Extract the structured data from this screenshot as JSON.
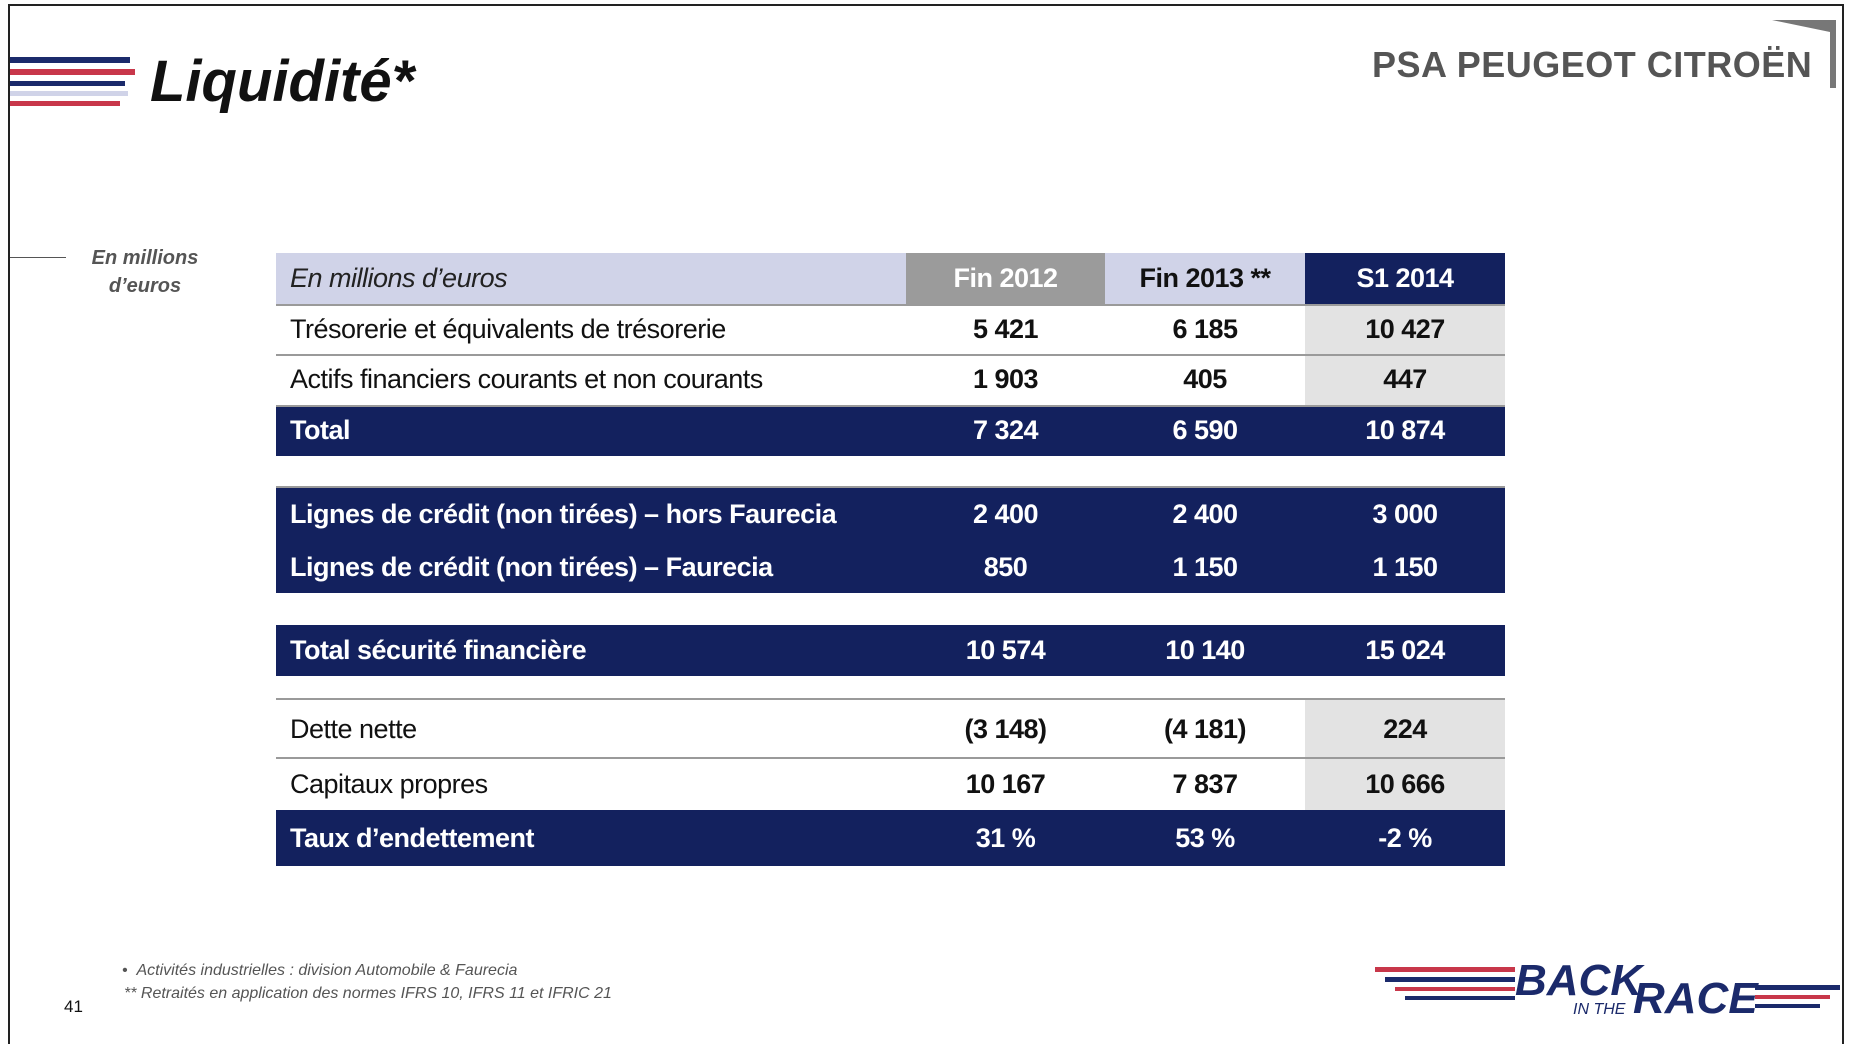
{
  "header": {
    "title": "Liquidité*",
    "logo": "PSA PEUGEOT CITROËN"
  },
  "side_note": "En millions d’euros",
  "table": {
    "columns": [
      "En millions d’euros",
      "Fin 2012",
      "Fin 2013 **",
      "S1 2014"
    ],
    "rows": [
      [
        "Trésorerie et équivalents de trésorerie",
        "5 421",
        "6 185",
        "10 427"
      ],
      [
        "Actifs financiers courants et non courants",
        "1 903",
        "405",
        "447"
      ],
      [
        "Total",
        "7 324",
        "6 590",
        "10 874"
      ],
      [
        "Lignes de crédit (non tirées) – hors Faurecia",
        "2 400",
        "2 400",
        "3 000"
      ],
      [
        "Lignes de crédit (non tirées) – Faurecia",
        "850",
        "1 150",
        "1 150"
      ],
      [
        "Total sécurité financière",
        "10 574",
        "10 140",
        "15 024"
      ],
      [
        "Dette nette",
        "(3 148)",
        "(4 181)",
        "224"
      ],
      [
        "Capitaux propres",
        "10 167",
        "7 837",
        "10 666"
      ],
      [
        "Taux d’endettement",
        "31 %",
        "53 %",
        "-2 %"
      ]
    ]
  },
  "footnotes": [
    "Activités industrielles : division Automobile & Faurecia",
    "** Retraités en application des normes IFRS 10, IFRS 11 et IFRIC 21"
  ],
  "page_number": "41",
  "brand": {
    "back": "BACK",
    "in_the": "IN THE",
    "race": "RACE"
  }
}
